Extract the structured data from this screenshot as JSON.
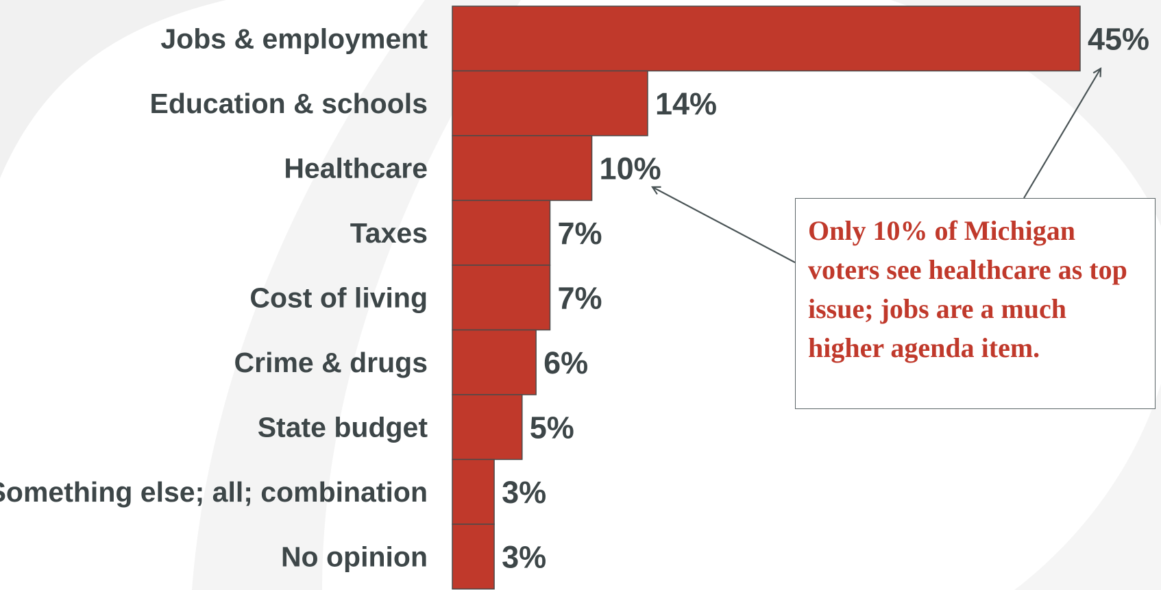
{
  "colors": {
    "bar_fill": "#c0392b",
    "label_text": "#3d4648",
    "callout_text": "#c0392b",
    "arrow": "#4a5456"
  },
  "chart_data": {
    "type": "bar",
    "orientation": "horizontal",
    "categories": [
      "Jobs & employment",
      "Education & schools",
      "Healthcare",
      "Taxes",
      "Cost of living",
      "Crime & drugs",
      "State budget",
      "Something else; all; combination",
      "No opinion"
    ],
    "values": [
      45,
      14,
      10,
      7,
      7,
      6,
      5,
      3,
      3
    ],
    "value_labels": [
      "45%",
      "14%",
      "10%",
      "7%",
      "7%",
      "6%",
      "5%",
      "3%",
      "3%"
    ],
    "xlim": [
      0,
      45
    ],
    "grid": false,
    "legend": "none"
  },
  "annotation": {
    "text": "Only 10% of Michigan voters see healthcare as top issue; jobs are a much higher agenda item."
  }
}
